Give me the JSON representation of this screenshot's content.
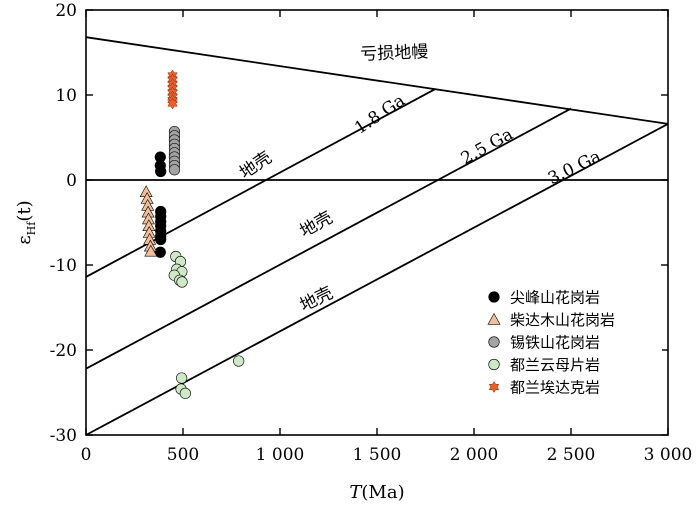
{
  "chart_data": {
    "type": "scatter",
    "xlabel": {
      "main": "T",
      "unit": "(Ma)"
    },
    "ylabel": {
      "main": "ε",
      "sub": "Hf",
      "rest": "(t)"
    },
    "xlim": [
      0,
      3000
    ],
    "ylim": [
      -30,
      20
    ],
    "xticks": [
      {
        "value": 0,
        "label": "0"
      },
      {
        "value": 500,
        "label": "500"
      },
      {
        "value": 1000,
        "label": "1 000"
      },
      {
        "value": 1500,
        "label": "1 500"
      },
      {
        "value": 2000,
        "label": "2 000"
      },
      {
        "value": 2500,
        "label": "2 500"
      },
      {
        "value": 3000,
        "label": "3 000"
      }
    ],
    "yticks": [
      {
        "value": 20,
        "label": "20"
      },
      {
        "value": 10,
        "label": "10"
      },
      {
        "value": 0,
        "label": "0"
      },
      {
        "value": -10,
        "label": "-10"
      },
      {
        "value": -20,
        "label": "-20"
      },
      {
        "value": -30,
        "label": "-30"
      }
    ],
    "reference_lines": [
      {
        "label": "亏损地幔",
        "points": [
          [
            0,
            16.8
          ],
          [
            3000,
            6.6
          ]
        ]
      },
      {
        "label": "",
        "points": [
          [
            0,
            0
          ],
          [
            3000,
            0
          ]
        ]
      },
      {
        "label": "1.8 Ga",
        "points": [
          [
            0,
            -11.4
          ],
          [
            1800,
            10.7
          ]
        ]
      },
      {
        "label": "2.5 Ga",
        "points": [
          [
            0,
            -22.2
          ],
          [
            2500,
            8.4
          ]
        ]
      },
      {
        "label": "3.0 Ga",
        "points": [
          [
            0,
            -30
          ],
          [
            3000,
            6.6
          ]
        ]
      }
    ],
    "annotations": [
      {
        "text": "亏损地幔",
        "x": 1590,
        "y": 14.3,
        "angle": -2.2
      },
      {
        "text": "1.8 Ga",
        "x": 1530,
        "y": 7.2,
        "angle": -34
      },
      {
        "text": "2.5 Ga",
        "x": 2080,
        "y": 3.4,
        "angle": -29
      },
      {
        "text": "3.0 Ga",
        "x": 2530,
        "y": 0.9,
        "angle": -26
      },
      {
        "text": "地壳",
        "x": 890,
        "y": 1.2,
        "angle": -34
      },
      {
        "text": "地壳",
        "x": 1200,
        "y": -5.8,
        "angle": -29
      },
      {
        "text": "地壳",
        "x": 1200,
        "y": -14.6,
        "angle": -26
      }
    ],
    "series": [
      {
        "name": "尖峰山花岗岩",
        "marker": "circle",
        "color": "#000000",
        "points": [
          [
            383,
            2.7
          ],
          [
            383,
            1.7
          ],
          [
            385,
            1.0
          ],
          [
            385,
            -3.7
          ],
          [
            385,
            -4.3
          ],
          [
            385,
            -4.9
          ],
          [
            385,
            -5.4
          ],
          [
            385,
            -6.0
          ],
          [
            385,
            -6.6
          ],
          [
            385,
            -7.0
          ],
          [
            383,
            -8.5
          ]
        ]
      },
      {
        "name": "柴达木山花岗岩",
        "marker": "triangle",
        "color": "#f3bf9a",
        "points": [
          [
            310,
            -1.4
          ],
          [
            315,
            -2.2
          ],
          [
            318,
            -3.0
          ],
          [
            320,
            -3.8
          ],
          [
            322,
            -4.6
          ],
          [
            324,
            -5.4
          ],
          [
            326,
            -6.2
          ],
          [
            328,
            -7.0
          ],
          [
            332,
            -7.8
          ],
          [
            334,
            -8.4
          ]
        ]
      },
      {
        "name": "锡铁山花岗岩",
        "marker": "circle",
        "color": "#a3a3a3",
        "points": [
          [
            456,
            5.7
          ],
          [
            456,
            5.2
          ],
          [
            456,
            4.7
          ],
          [
            456,
            4.2
          ],
          [
            456,
            3.7
          ],
          [
            456,
            3.2
          ],
          [
            456,
            2.7
          ],
          [
            456,
            2.2
          ],
          [
            456,
            1.7
          ],
          [
            456,
            1.2
          ]
        ]
      },
      {
        "name": "都兰云母片岩",
        "marker": "circle",
        "color": "#cfe9c6",
        "points": [
          [
            463,
            -9.0
          ],
          [
            487,
            -9.6
          ],
          [
            468,
            -10.5
          ],
          [
            494,
            -10.8
          ],
          [
            455,
            -11.2
          ],
          [
            483,
            -11.8
          ],
          [
            495,
            -12.0
          ],
          [
            787,
            -21.3
          ],
          [
            493,
            -23.3
          ],
          [
            490,
            -24.6
          ],
          [
            512,
            -25.1
          ]
        ]
      },
      {
        "name": "都兰埃达克岩",
        "marker": "star",
        "color": "#e8612d",
        "points": [
          [
            446,
            12.3
          ],
          [
            446,
            11.8
          ],
          [
            446,
            11.3
          ],
          [
            446,
            10.8
          ],
          [
            446,
            10.3
          ],
          [
            446,
            9.8
          ],
          [
            446,
            9.4
          ],
          [
            446,
            9.0
          ]
        ]
      }
    ]
  }
}
